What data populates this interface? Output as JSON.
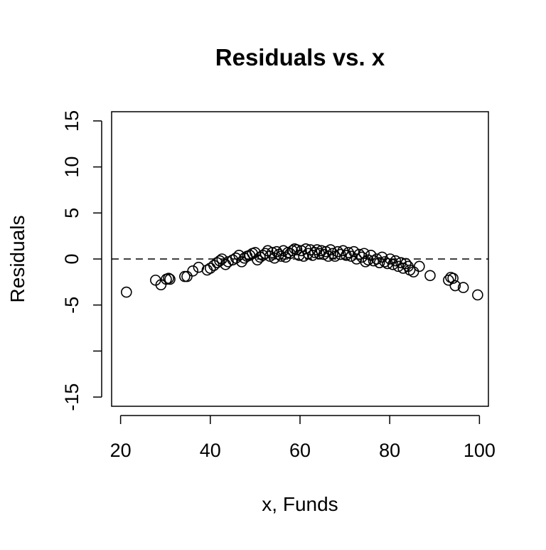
{
  "chart_data": {
    "type": "scatter",
    "title": "Residuals vs. x",
    "xlabel": "x, Funds",
    "ylabel": "Residuals",
    "xlim": [
      18,
      102
    ],
    "ylim": [
      -16,
      16
    ],
    "x_ticks": [
      20,
      40,
      60,
      80,
      100
    ],
    "x_tick_labels": [
      "20",
      "40",
      "60",
      "80",
      "100"
    ],
    "y_ticks": [
      -15,
      -10,
      -5,
      0,
      5,
      10,
      15
    ],
    "y_tick_labels": [
      "-15",
      "",
      "-5",
      "0",
      "5",
      "10",
      "15"
    ],
    "reference_line": {
      "y": 0,
      "style": "dashed"
    },
    "grid": false,
    "legend": "none",
    "marker": "open-circle",
    "points": [
      [
        21.3,
        -3.6
      ],
      [
        27.8,
        -2.3
      ],
      [
        29.0,
        -2.8
      ],
      [
        30.2,
        -2.2
      ],
      [
        30.7,
        -2.1
      ],
      [
        31.0,
        -2.2
      ],
      [
        34.3,
        -1.9
      ],
      [
        34.8,
        -1.9
      ],
      [
        36.1,
        -1.3
      ],
      [
        37.4,
        -0.9
      ],
      [
        39.3,
        -1.2
      ],
      [
        40.0,
        -1.0
      ],
      [
        40.8,
        -0.7
      ],
      [
        41.5,
        -0.4
      ],
      [
        42.1,
        -0.2
      ],
      [
        42.6,
        0.0
      ],
      [
        43.4,
        -0.6
      ],
      [
        44.0,
        -0.3
      ],
      [
        45.0,
        -0.1
      ],
      [
        45.7,
        0.1
      ],
      [
        46.4,
        0.4
      ],
      [
        47.0,
        -0.3
      ],
      [
        47.6,
        0.1
      ],
      [
        48.2,
        0.3
      ],
      [
        48.8,
        0.4
      ],
      [
        49.4,
        0.6
      ],
      [
        50.0,
        0.7
      ],
      [
        50.5,
        -0.1
      ],
      [
        51.1,
        0.2
      ],
      [
        51.7,
        0.4
      ],
      [
        52.3,
        0.6
      ],
      [
        52.8,
        0.9
      ],
      [
        53.3,
        0.3
      ],
      [
        53.8,
        0.7
      ],
      [
        54.3,
        0.1
      ],
      [
        54.8,
        0.8
      ],
      [
        55.3,
        0.5
      ],
      [
        55.8,
        0.3
      ],
      [
        56.3,
        0.9
      ],
      [
        56.8,
        0.2
      ],
      [
        57.3,
        0.7
      ],
      [
        57.8,
        0.6
      ],
      [
        58.3,
        0.9
      ],
      [
        58.8,
        1.1
      ],
      [
        59.3,
        1.0
      ],
      [
        59.8,
        0.4
      ],
      [
        60.3,
        0.9
      ],
      [
        60.8,
        0.3
      ],
      [
        61.3,
        1.1
      ],
      [
        61.8,
        0.6
      ],
      [
        62.3,
        1.0
      ],
      [
        62.8,
        0.4
      ],
      [
        63.3,
        0.7
      ],
      [
        63.8,
        1.0
      ],
      [
        64.3,
        0.6
      ],
      [
        64.8,
        0.9
      ],
      [
        65.3,
        0.5
      ],
      [
        65.8,
        0.8
      ],
      [
        66.3,
        0.3
      ],
      [
        66.8,
        1.0
      ],
      [
        67.3,
        0.6
      ],
      [
        67.8,
        0.3
      ],
      [
        68.4,
        0.8
      ],
      [
        69.0,
        0.5
      ],
      [
        69.6,
        0.9
      ],
      [
        70.3,
        0.4
      ],
      [
        70.8,
        0.7
      ],
      [
        71.4,
        0.3
      ],
      [
        72.0,
        0.8
      ],
      [
        72.6,
        0.0
      ],
      [
        73.2,
        0.5
      ],
      [
        73.8,
        0.2
      ],
      [
        74.3,
        0.6
      ],
      [
        74.6,
        -0.3
      ],
      [
        75.2,
        -0.1
      ],
      [
        75.8,
        0.4
      ],
      [
        76.4,
        -0.2
      ],
      [
        77.1,
        0.0
      ],
      [
        77.7,
        -0.4
      ],
      [
        78.3,
        0.2
      ],
      [
        78.9,
        -0.3
      ],
      [
        79.5,
        -0.5
      ],
      [
        80.1,
        0.0
      ],
      [
        80.7,
        -0.6
      ],
      [
        81.3,
        -0.2
      ],
      [
        81.9,
        -0.8
      ],
      [
        82.5,
        -0.4
      ],
      [
        83.0,
        -1.0
      ],
      [
        83.6,
        -0.5
      ],
      [
        84.1,
        -0.8
      ],
      [
        84.5,
        -1.2
      ],
      [
        85.3,
        -1.4
      ],
      [
        86.6,
        -0.8
      ],
      [
        89.0,
        -1.8
      ],
      [
        93.1,
        -2.3
      ],
      [
        93.6,
        -2.0
      ],
      [
        94.1,
        -2.1
      ],
      [
        94.6,
        -2.9
      ],
      [
        96.4,
        -3.1
      ],
      [
        99.6,
        -3.9
      ]
    ]
  }
}
